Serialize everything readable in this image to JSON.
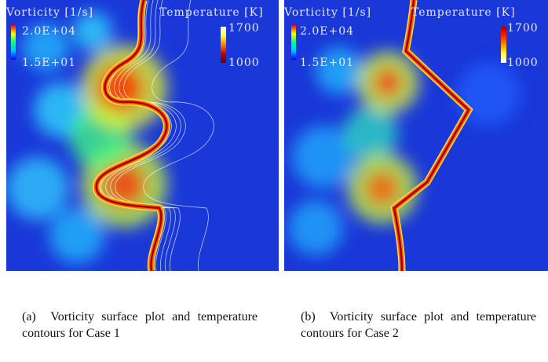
{
  "panels": [
    {
      "label": "(a)",
      "vorticity_title": "Vorticity [1/s]",
      "vorticity_max": "2.0E+04",
      "vorticity_min": "1.5E+01",
      "temperature_title": "Temperature [K]",
      "temperature_max": "1700",
      "temperature_min": "1000",
      "caption": "Vorticity surface plot and temperature contours for Case 1"
    },
    {
      "label": "(b)",
      "vorticity_title": "Vorticity [1/s]",
      "vorticity_max": "2.0E+04",
      "vorticity_min": "1.5E+01",
      "temperature_title": "Temperature [K]",
      "temperature_max": "1700",
      "temperature_min": "1000",
      "caption": "Vorticity surface plot and temperature contours for Case 2"
    }
  ]
}
